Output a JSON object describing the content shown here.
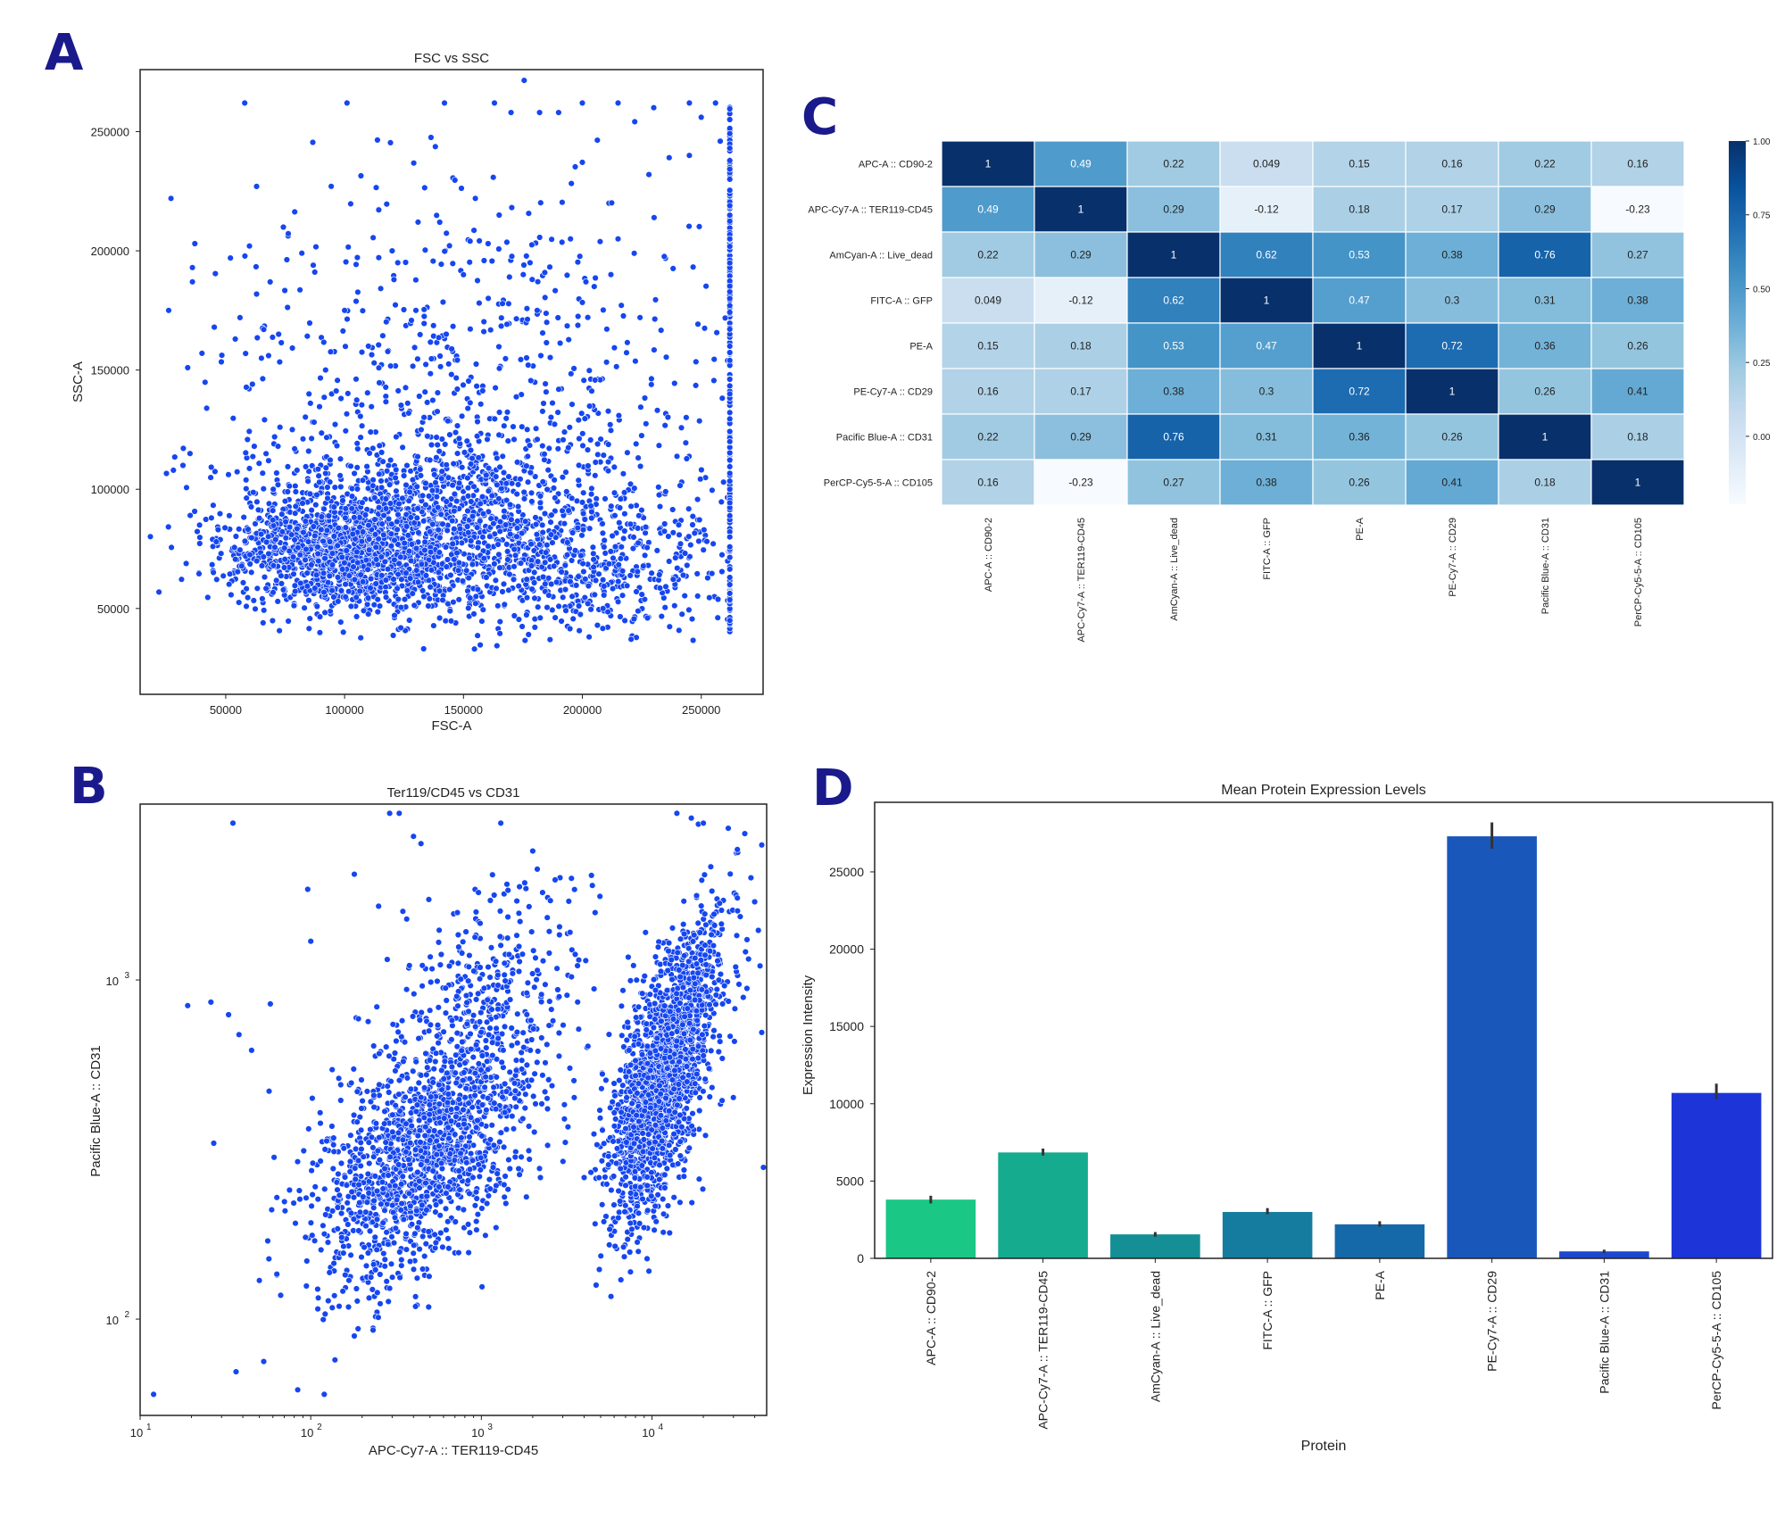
{
  "panels": {
    "a": {
      "letter": "A"
    },
    "b": {
      "letter": "B"
    },
    "c": {
      "letter": "C"
    },
    "d": {
      "letter": "D"
    }
  },
  "chart_data": [
    {
      "id": "A",
      "type": "scatter",
      "title": "FSC vs SSC",
      "xlabel": "FSC-A",
      "ylabel": "SSC-A",
      "xlim": [
        14000,
        276000
      ],
      "ylim": [
        14000,
        276000
      ],
      "xticks": [
        50000,
        100000,
        150000,
        200000,
        250000
      ],
      "yticks": [
        50000,
        100000,
        150000,
        200000,
        250000
      ],
      "color": "#1646f0",
      "points": [
        [
          26000,
          175000
        ],
        [
          27000,
          222000
        ],
        [
          28000,
          108000
        ],
        [
          32000,
          110000
        ],
        [
          34000,
          151000
        ],
        [
          35000,
          115000
        ],
        [
          36000,
          193000
        ],
        [
          36000,
          187000
        ],
        [
          37000,
          203000
        ],
        [
          39000,
          85000
        ],
        [
          40000,
          157000
        ],
        [
          42000,
          134000
        ],
        [
          44000,
          88000
        ],
        [
          46000,
          78000
        ],
        [
          52000,
          197000
        ],
        [
          54000,
          163000
        ],
        [
          56000,
          172000
        ],
        [
          58000,
          262000
        ],
        [
          60000,
          202000
        ],
        [
          62000,
          118000
        ],
        [
          63000,
          227000
        ],
        [
          65000,
          155000
        ],
        [
          66000,
          167000
        ],
        [
          101000,
          262000
        ],
        [
          142000,
          262000
        ],
        [
          163000,
          262000
        ],
        [
          170000,
          258000
        ],
        [
          182000,
          258000
        ],
        [
          190000,
          258000
        ],
        [
          200000,
          262000
        ],
        [
          215000,
          262000
        ],
        [
          230000,
          260000
        ],
        [
          245000,
          262000
        ],
        [
          250000,
          256000
        ],
        [
          256000,
          262000
        ],
        [
          258000,
          246000
        ],
        [
          262000,
          230000
        ],
        [
          262000,
          205000
        ],
        [
          262000,
          180000
        ],
        [
          262000,
          160000
        ],
        [
          262000,
          140000
        ],
        [
          262000,
          120000
        ],
        [
          262000,
          100000
        ],
        [
          262000,
          80000
        ],
        [
          262000,
          60000
        ],
        [
          262000,
          45000
        ],
        [
          245000,
          240000
        ],
        [
          228000,
          232000
        ],
        [
          215000,
          205000
        ],
        [
          205000,
          185000
        ],
        [
          195000,
          205000
        ],
        [
          185000,
          170000
        ],
        [
          178000,
          195000
        ],
        [
          165000,
          215000
        ],
        [
          155000,
          222000
        ],
        [
          150000,
          190000
        ],
        [
          140000,
          212000
        ],
        [
          130000,
          175000
        ],
        [
          120000,
          200000
        ],
        [
          110000,
          160000
        ],
        [
          100000,
          175000
        ],
        [
          92000,
          150000
        ],
        [
          82000,
          199000
        ],
        [
          85000,
          140000
        ],
        [
          78000,
          125000
        ],
        [
          72000,
          118000
        ],
        [
          70000,
          100000
        ],
        [
          68000,
          112000
        ],
        [
          75000,
          95000
        ],
        [
          80000,
          108000
        ]
      ],
      "clusters": [
        {
          "cx": 100000,
          "cy": 68000,
          "sx": 26000,
          "sy": 16000,
          "n": 1400
        },
        {
          "cx": 150000,
          "cy": 80000,
          "sx": 40000,
          "sy": 28000,
          "n": 1000
        },
        {
          "cx": 200000,
          "cy": 60000,
          "sx": 35000,
          "sy": 18000,
          "n": 500
        },
        {
          "cx": 160000,
          "cy": 140000,
          "sx": 55000,
          "sy": 45000,
          "n": 450
        }
      ]
    },
    {
      "id": "B",
      "type": "scatter",
      "title": "Ter119/CD45 vs CD31",
      "xlabel": "APC-Cy7-A :: TER119-CD45",
      "ylabel": "Pacific Blue-A :: CD31",
      "xscale": "log",
      "yscale": "log",
      "xlim": [
        10,
        47000
      ],
      "ylim": [
        52,
        3300
      ],
      "xticks": [
        {
          "v": 10,
          "b": "10",
          "e": "1"
        },
        {
          "v": 100,
          "b": "10",
          "e": "2"
        },
        {
          "v": 1000,
          "b": "10",
          "e": "3"
        },
        {
          "v": 10000,
          "b": "10",
          "e": "4"
        }
      ],
      "yticks": [
        {
          "v": 100,
          "b": "10",
          "e": "2"
        },
        {
          "v": 1000,
          "b": "10",
          "e": "3"
        }
      ],
      "color": "#1646f0",
      "points": [
        [
          12,
          60
        ],
        [
          19,
          840
        ],
        [
          26,
          860
        ],
        [
          27,
          330
        ],
        [
          33,
          790
        ],
        [
          35,
          2900
        ],
        [
          38,
          690
        ],
        [
          45,
          620
        ],
        [
          50,
          130
        ],
        [
          53,
          75
        ],
        [
          56,
          170
        ],
        [
          57,
          470
        ],
        [
          58,
          850
        ],
        [
          59,
          210
        ],
        [
          61,
          300
        ],
        [
          100,
          1300
        ],
        [
          96,
          1850
        ],
        [
          120,
          60
        ],
        [
          180,
          2050
        ],
        [
          290,
          3100
        ],
        [
          330,
          3100
        ],
        [
          400,
          2650
        ],
        [
          250,
          1650
        ],
        [
          14000,
          3100
        ],
        [
          17000,
          3000
        ],
        [
          20000,
          2900
        ],
        [
          28000,
          2800
        ],
        [
          35000,
          2700
        ],
        [
          44000,
          2500
        ],
        [
          45000,
          280
        ],
        [
          38000,
          2000
        ],
        [
          40000,
          1700
        ],
        [
          42000,
          1400
        ],
        [
          43000,
          1100
        ],
        [
          44000,
          700
        ],
        [
          30000,
          450
        ],
        [
          3500,
          450
        ],
        [
          2500,
          1200
        ],
        [
          2000,
          2400
        ],
        [
          1300,
          2900
        ]
      ],
      "clusters": [
        {
          "lcx": 2.65,
          "lcy": 2.47,
          "lsx": 0.32,
          "lsy": 0.19,
          "rho": 0.55,
          "n": 1300
        },
        {
          "lcx": 4.0,
          "lcy": 2.62,
          "lsx": 0.14,
          "lsy": 0.18,
          "rho": 0.45,
          "n": 1000
        },
        {
          "lcx": 4.15,
          "lcy": 2.85,
          "lsx": 0.14,
          "lsy": 0.17,
          "rho": 0.6,
          "n": 900
        },
        {
          "lcx": 2.95,
          "lcy": 2.85,
          "lsx": 0.3,
          "lsy": 0.22,
          "rho": 0.4,
          "n": 500
        }
      ]
    },
    {
      "id": "C",
      "type": "heatmap",
      "labels": [
        "APC-A :: CD90-2",
        "APC-Cy7-A :: TER119-CD45",
        "AmCyan-A :: Live_dead",
        "FITC-A :: GFP",
        "PE-A",
        "PE-Cy7-A :: CD29",
        "Pacific Blue-A :: CD31",
        "PerCP-Cy5-5-A :: CD105"
      ],
      "values": [
        [
          "1",
          "0.49",
          "0.22",
          "0.049",
          "0.15",
          "0.16",
          "0.22",
          "0.16"
        ],
        [
          "0.49",
          "1",
          "0.29",
          "-0.12",
          "0.18",
          "0.17",
          "0.29",
          "-0.23"
        ],
        [
          "0.22",
          "0.29",
          "1",
          "0.62",
          "0.53",
          "0.38",
          "0.76",
          "0.27"
        ],
        [
          "0.049",
          "-0.12",
          "0.62",
          "1",
          "0.47",
          "0.3",
          "0.31",
          "0.38"
        ],
        [
          "0.15",
          "0.18",
          "0.53",
          "0.47",
          "1",
          "0.72",
          "0.36",
          "0.26"
        ],
        [
          "0.16",
          "0.17",
          "0.38",
          "0.3",
          "0.72",
          "1",
          "0.26",
          "0.41"
        ],
        [
          "0.22",
          "0.29",
          "0.76",
          "0.31",
          "0.36",
          "0.26",
          "1",
          "0.18"
        ],
        [
          "0.16",
          "-0.23",
          "0.27",
          "0.38",
          "0.26",
          "0.41",
          "0.18",
          "1"
        ]
      ],
      "vmin": -0.23,
      "vmax": 1.0,
      "colorbar_ticks": [
        "1.00",
        "0.75",
        "0.50",
        "0.25",
        "0.00"
      ],
      "colormap": "Blues"
    },
    {
      "id": "D",
      "type": "bar",
      "title": "Mean Protein Expression Levels",
      "xlabel": "Protein",
      "ylabel": "Expression Intensity",
      "ylim": [
        0,
        29500
      ],
      "yticks": [
        0,
        5000,
        10000,
        15000,
        20000,
        25000
      ],
      "categories": [
        "APC-A :: CD90-2",
        "APC-Cy7-A :: TER119-CD45",
        "AmCyan-A :: Live_dead",
        "FITC-A :: GFP",
        "PE-A",
        "PE-Cy7-A :: CD29",
        "Pacific Blue-A :: CD31",
        "PerCP-Cy5-5-A :: CD105"
      ],
      "values": [
        3800,
        6850,
        1550,
        3000,
        2200,
        27300,
        450,
        10700
      ],
      "errors": [
        [
          3550,
          4050
        ],
        [
          6650,
          7100
        ],
        [
          1400,
          1700
        ],
        [
          2850,
          3250
        ],
        [
          2050,
          2400
        ],
        [
          26500,
          28200
        ],
        [
          330,
          560
        ],
        [
          10300,
          11300
        ]
      ],
      "colors": [
        "#1ac785",
        "#15ab8f",
        "#138f95",
        "#167c9f",
        "#1669a9",
        "#1a57bb",
        "#1c47cf",
        "#1d34d8"
      ]
    }
  ]
}
